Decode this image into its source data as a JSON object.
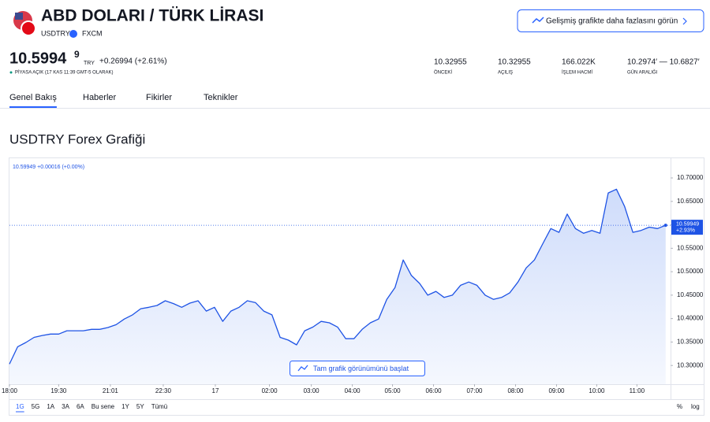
{
  "header": {
    "title": "ABD DOLARI / TÜRK LİRASI",
    "symbol": "USDTRY",
    "exchange": "FXCM",
    "button": "Gelişmiş grafikte daha fazlasını görün"
  },
  "quote": {
    "price": "10.5994",
    "price_small": "9",
    "currency": "TRY",
    "change": "+0.26994 (+2.61%)",
    "status": "PİYASA AÇIK (17 KAS 11:39 GMT-5 OLARAK)"
  },
  "stats": [
    {
      "value": "10.32955",
      "label": "ÖNCEKİ"
    },
    {
      "value": "10.32955",
      "label": "AÇILIŞ"
    },
    {
      "value": "166.022K",
      "label": "İŞLEM HACMİ"
    },
    {
      "value": "10.2974′ — 10.6827′",
      "label": "GÜN ARALIĞI"
    }
  ],
  "tabs": [
    "Genel Bakış",
    "Haberler",
    "Fikirler",
    "Teknikler"
  ],
  "section_title": "USDTRY Forex Grafiği",
  "chart_data": {
    "type": "area",
    "legend_text": "10.59949 +0.00016 (+0.00%)",
    "last_label": "10.59949",
    "last_change": "+2.93%",
    "button": "Tam grafik görünümünü başlat",
    "color": "#1e53e5",
    "fill": "#d9e4fb",
    "xlim": [
      0,
      80.6
    ],
    "xticks": [
      {
        "value": 0,
        "label": "18:00"
      },
      {
        "value": 6,
        "label": "19:30"
      },
      {
        "value": 12.3,
        "label": "21:01"
      },
      {
        "value": 18.75,
        "label": "22:30"
      },
      {
        "value": 25.1,
        "label": "17"
      },
      {
        "value": 31.7,
        "label": "02:00"
      },
      {
        "value": 36.8,
        "label": "03:00"
      },
      {
        "value": 41.8,
        "label": "04:00"
      },
      {
        "value": 46.7,
        "label": "05:00"
      },
      {
        "value": 51.7,
        "label": "06:00"
      },
      {
        "value": 56.7,
        "label": "07:00"
      },
      {
        "value": 61.7,
        "label": "08:00"
      },
      {
        "value": 66.7,
        "label": "09:00"
      },
      {
        "value": 71.6,
        "label": "10:00"
      },
      {
        "value": 76.5,
        "label": "11:00"
      }
    ],
    "ylim": [
      10.26,
      10.742
    ],
    "yticks": [
      {
        "value": 10.3,
        "label": "10.30000"
      },
      {
        "value": 10.35,
        "label": "10.35000"
      },
      {
        "value": 10.4,
        "label": "10.40000"
      },
      {
        "value": 10.45,
        "label": "10.45000"
      },
      {
        "value": 10.5,
        "label": "10.50000"
      },
      {
        "value": 10.55,
        "label": "10.55000"
      },
      {
        "value": 10.6,
        "label": "10.60000"
      },
      {
        "value": 10.65,
        "label": "10.65000"
      },
      {
        "value": 10.7,
        "label": "10.70000"
      }
    ],
    "x": [
      0,
      1,
      2,
      3,
      4,
      5,
      6,
      7,
      8,
      9,
      10,
      11,
      12,
      13,
      14,
      15,
      16,
      17,
      18,
      19,
      20,
      21,
      22,
      23,
      24,
      25,
      26,
      27,
      28,
      29,
      30,
      31,
      32,
      33,
      34,
      35,
      36,
      37,
      38,
      39,
      40,
      41,
      42,
      43,
      44,
      45,
      46,
      47,
      48,
      49,
      50,
      51,
      52,
      53,
      54,
      55,
      56,
      57,
      58,
      59,
      60,
      61,
      62,
      63,
      64,
      65,
      66,
      67,
      68,
      69,
      70,
      71,
      72,
      73,
      74,
      75,
      76,
      77,
      78,
      79,
      80
    ],
    "values": [
      10.303,
      10.34,
      10.349,
      10.36,
      10.364,
      10.367,
      10.367,
      10.374,
      10.374,
      10.374,
      10.377,
      10.377,
      10.381,
      10.387,
      10.399,
      10.408,
      10.421,
      10.424,
      10.428,
      10.438,
      10.432,
      10.424,
      10.433,
      10.438,
      10.416,
      10.424,
      10.394,
      10.416,
      10.424,
      10.438,
      10.434,
      10.416,
      10.408,
      10.36,
      10.354,
      10.344,
      10.374,
      10.382,
      10.394,
      10.391,
      10.382,
      10.357,
      10.357,
      10.377,
      10.391,
      10.399,
      10.441,
      10.466,
      10.525,
      10.492,
      10.475,
      10.45,
      10.458,
      10.445,
      10.45,
      10.471,
      10.478,
      10.471,
      10.45,
      10.441,
      10.445,
      10.455,
      10.478,
      10.508,
      10.525,
      10.559,
      10.592,
      10.584,
      10.623,
      10.592,
      10.582,
      10.588,
      10.582,
      10.668,
      10.676,
      10.639,
      10.584,
      10.588,
      10.595,
      10.592,
      10.599
    ],
    "ranges": [
      "1G",
      "5G",
      "1A",
      "3A",
      "6A",
      "Bu sene",
      "1Y",
      "5Y",
      "Tümü"
    ],
    "scale_options": [
      "%",
      "log"
    ]
  }
}
